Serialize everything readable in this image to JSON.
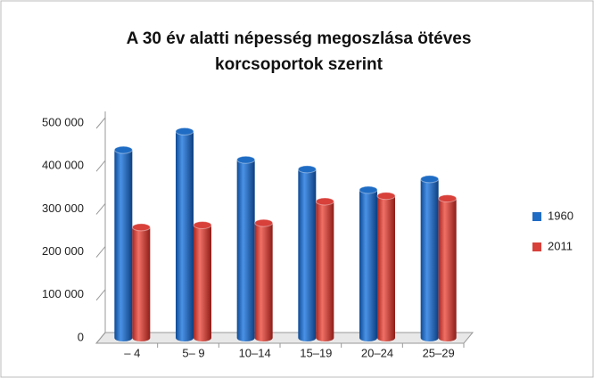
{
  "chart_data": {
    "type": "bar",
    "title": [
      "A 30 év alatti  népesség megoszlása ötéves",
      "korcsoportok szerint"
    ],
    "categories": [
      "– 4",
      "5– 9",
      "10–14",
      "15–19",
      "20–24",
      "25–29"
    ],
    "series": [
      {
        "name": "1960",
        "color": "#1f6cc4",
        "values": [
          425000,
          468000,
          402000,
          380000,
          332000,
          357000
        ]
      },
      {
        "name": "2011",
        "color": "#d8403a",
        "values": [
          245000,
          250000,
          255000,
          305000,
          318000,
          312000
        ]
      }
    ],
    "ylim": [
      0,
      500000
    ],
    "yticks": [
      0,
      {
        "value": 100000,
        "label": "100 000"
      },
      {
        "value": 200000,
        "label": "200 000"
      },
      {
        "value": 300000,
        "label": "300 000"
      },
      {
        "value": 400000,
        "label": "400 000"
      },
      {
        "value": 500000,
        "label": "500 000"
      }
    ],
    "grid": false,
    "legend": "right"
  }
}
